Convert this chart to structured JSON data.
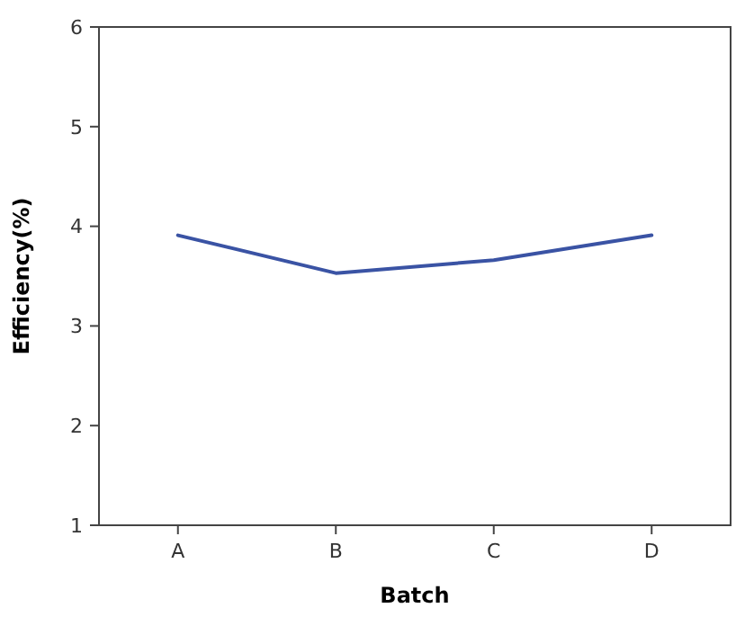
{
  "chart_data": {
    "type": "line",
    "xlabel": "Batch",
    "ylabel": "Efficiency(%)",
    "categories": [
      "A",
      "B",
      "C",
      "D"
    ],
    "series": [
      {
        "color": "#3a53a4",
        "values": [
          3.91,
          3.53,
          3.66,
          3.91
        ]
      }
    ],
    "ylim": [
      1,
      6
    ],
    "yticks": [
      1,
      2,
      3,
      4,
      5,
      6
    ],
    "grid": false,
    "marker": "none",
    "line_style": "solid"
  }
}
